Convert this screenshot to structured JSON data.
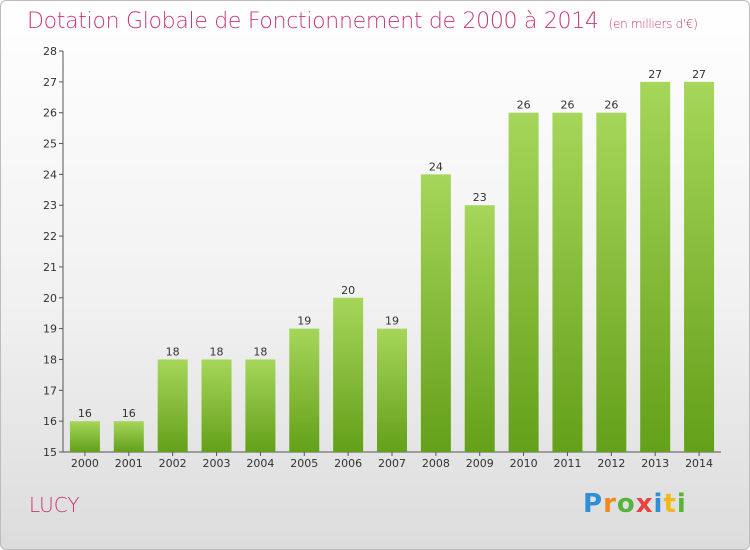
{
  "header": {
    "title": "Dotation Globale de Fonctionnement de 2000 à 2014",
    "subtitle": "(en milliers d'€)"
  },
  "commune": "LUCY",
  "logo": {
    "letters": [
      "P",
      "r",
      "o",
      "x",
      "i",
      "t",
      "i"
    ]
  },
  "colors": {
    "bar_top": "#a6d65a",
    "bar_bottom": "#64a019",
    "title": "#c8367c",
    "axis": "#555555"
  },
  "chart_data": {
    "type": "bar",
    "categories": [
      "2000",
      "2001",
      "2002",
      "2003",
      "2004",
      "2005",
      "2006",
      "2007",
      "2008",
      "2009",
      "2010",
      "2011",
      "2012",
      "2013",
      "2014"
    ],
    "values": [
      16,
      16,
      18,
      18,
      18,
      19,
      20,
      19,
      24,
      23,
      26,
      26,
      26,
      27,
      27
    ],
    "title": "Dotation Globale de Fonctionnement de 2000 à 2014",
    "subtitle": "(en milliers d'€)",
    "ylim": [
      15,
      28
    ],
    "yticks": [
      15,
      16,
      17,
      18,
      19,
      20,
      21,
      22,
      23,
      24,
      25,
      26,
      27,
      28
    ],
    "grid": false,
    "legend": "none"
  }
}
